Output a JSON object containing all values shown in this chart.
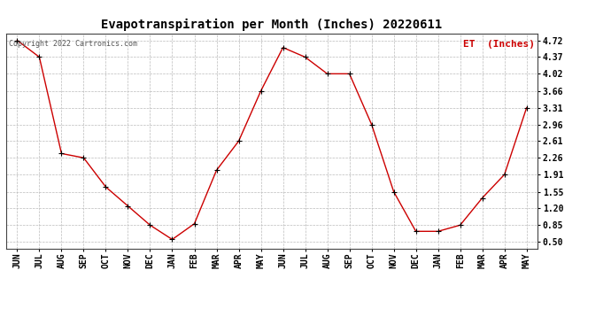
{
  "title": "Evapotranspiration per Month (Inches) 20220611",
  "legend_label": "ET  (Inches)",
  "copyright": "Copyright 2022 Cartronics.com",
  "months": [
    "JUN",
    "JUL",
    "AUG",
    "SEP",
    "OCT",
    "NOV",
    "DEC",
    "JAN",
    "FEB",
    "MAR",
    "APR",
    "MAY",
    "JUN",
    "JUL",
    "AUG",
    "SEP",
    "OCT",
    "NOV",
    "DEC",
    "JAN",
    "FEB",
    "MAR",
    "APR",
    "MAY"
  ],
  "values": [
    4.72,
    4.37,
    2.35,
    2.26,
    1.65,
    1.25,
    0.85,
    0.55,
    0.88,
    2.0,
    2.61,
    3.66,
    4.57,
    4.37,
    4.02,
    4.02,
    2.96,
    1.55,
    0.72,
    0.72,
    0.85,
    1.42,
    1.91,
    3.31
  ],
  "yticks": [
    0.5,
    0.85,
    1.2,
    1.55,
    1.91,
    2.26,
    2.61,
    2.96,
    3.31,
    3.66,
    4.02,
    4.37,
    4.72
  ],
  "ylim": [
    0.35,
    4.87
  ],
  "line_color": "#cc0000",
  "marker_color": "#000000",
  "grid_color": "#bbbbbb",
  "background_color": "#ffffff",
  "title_fontsize": 10,
  "tick_fontsize": 7,
  "legend_color": "#cc0000",
  "legend_fontsize": 8,
  "copyright_fontsize": 6
}
